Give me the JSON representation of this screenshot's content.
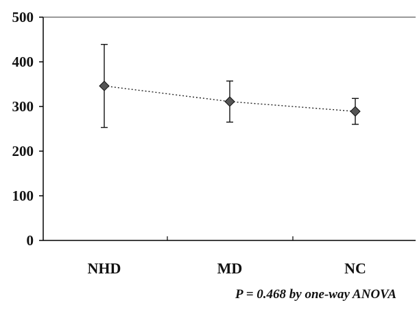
{
  "chart_data": {
    "type": "line",
    "categories": [
      "NHD",
      "MD",
      "NC"
    ],
    "series": [
      {
        "values": [
          346,
          311,
          289
        ],
        "error_low": [
          253,
          265,
          260
        ],
        "error_high": [
          439,
          357,
          318
        ]
      }
    ],
    "ylim": [
      0,
      500
    ],
    "yticks": [
      0,
      100,
      200,
      300,
      400,
      500
    ],
    "grid": false,
    "line_style": "dotted",
    "marker": "diamond",
    "annotation": "P = 0.468 by one-way ANOVA",
    "colors": {
      "marker_fill": "#555555",
      "line": "#222222"
    }
  }
}
